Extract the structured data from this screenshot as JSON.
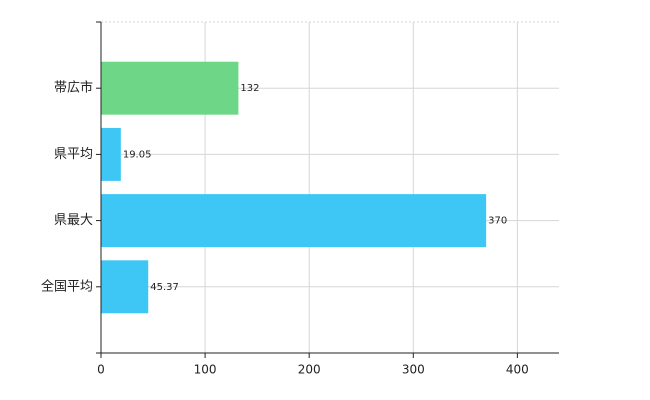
{
  "chart_data": {
    "type": "hbar",
    "categories": [
      "帯広市",
      "県平均",
      "県最大",
      "全国平均"
    ],
    "values": [
      132,
      19.05,
      370,
      45.37
    ],
    "colors": [
      "#6dd687",
      "#3ec6f5",
      "#3ec6f5",
      "#3ec6f5"
    ],
    "xlim": [
      0,
      440
    ],
    "xticks": [
      0,
      100,
      200,
      300,
      400
    ],
    "grid": true
  }
}
